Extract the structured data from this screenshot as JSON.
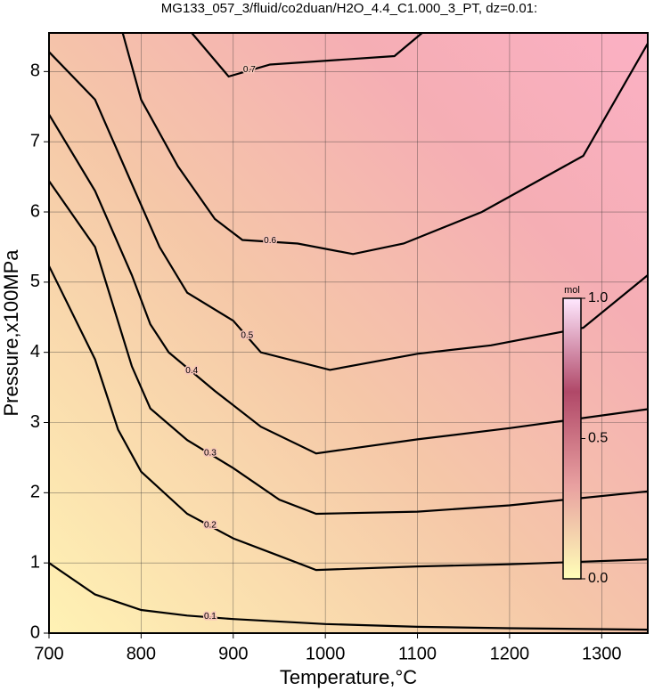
{
  "chart_data": {
    "type": "contour",
    "title": "MG133_057_3/fluid/co2duan/H2O_4.4_C1.000_3_PT, dz=0.01:",
    "x_label": "Temperature,°C",
    "y_label": "Pressure,x100MPa",
    "xlim": [
      700,
      1350
    ],
    "ylim": [
      0,
      8.55
    ],
    "xticks": [
      700,
      800,
      900,
      1000,
      1100,
      1200,
      1300
    ],
    "yticks": [
      0,
      1,
      2,
      3,
      4,
      5,
      6,
      7,
      8
    ],
    "grid": true,
    "line_color": "#000000",
    "contours": [
      {
        "level": 0.1,
        "x": [
          700,
          750,
          800,
          850,
          900,
          1000,
          1100,
          1200,
          1350
        ],
        "y": [
          1.0,
          0.55,
          0.33,
          0.25,
          0.2,
          0.13,
          0.09,
          0.07,
          0.05
        ]
      },
      {
        "level": 0.2,
        "x": [
          700,
          750,
          775,
          800,
          850,
          900,
          950,
          990,
          1100,
          1200,
          1350
        ],
        "y": [
          5.23,
          3.9,
          2.9,
          2.3,
          1.7,
          1.35,
          1.1,
          0.9,
          0.95,
          0.98,
          1.05
        ]
      },
      {
        "level": 0.3,
        "x": [
          700,
          750,
          790,
          810,
          850,
          900,
          950,
          990,
          1100,
          1200,
          1350
        ],
        "y": [
          6.44,
          5.5,
          3.8,
          3.2,
          2.75,
          2.35,
          1.9,
          1.7,
          1.73,
          1.82,
          2.02
        ]
      },
      {
        "level": 0.4,
        "x": [
          700,
          750,
          790,
          810,
          830,
          880,
          930,
          990,
          1100,
          1200,
          1350
        ],
        "y": [
          7.39,
          6.3,
          5.1,
          4.4,
          4.0,
          3.45,
          2.94,
          2.56,
          2.76,
          2.92,
          3.19
        ]
      },
      {
        "level": 0.5,
        "x": [
          700,
          750,
          790,
          820,
          850,
          900,
          930,
          1005,
          1100,
          1180,
          1280,
          1350
        ],
        "y": [
          8.28,
          7.6,
          6.4,
          5.5,
          4.85,
          4.45,
          4.0,
          3.75,
          3.98,
          4.1,
          4.35,
          5.1
        ]
      },
      {
        "level": 0.6,
        "x": [
          780,
          800,
          840,
          880,
          910,
          970,
          1030,
          1085,
          1170,
          1280,
          1350
        ],
        "y": [
          8.55,
          7.6,
          6.65,
          5.9,
          5.6,
          5.55,
          5.4,
          5.55,
          6.0,
          6.8,
          8.4
        ]
      },
      {
        "level": 0.7,
        "x": [
          855,
          895,
          940,
          1075,
          1105
        ],
        "y": [
          8.55,
          7.93,
          8.1,
          8.22,
          8.55
        ]
      }
    ],
    "colorbar": {
      "label": "mol",
      "lim": [
        0,
        1
      ],
      "ticks": [
        {
          "value": 0,
          "label": "0.0"
        },
        {
          "value": 0.5,
          "label": "0.5"
        },
        {
          "value": 1,
          "label": "1.0"
        }
      ],
      "colors": [
        "#ffffb8",
        "#e8a0a0",
        "#b04868",
        "#ffe8ff"
      ]
    }
  }
}
